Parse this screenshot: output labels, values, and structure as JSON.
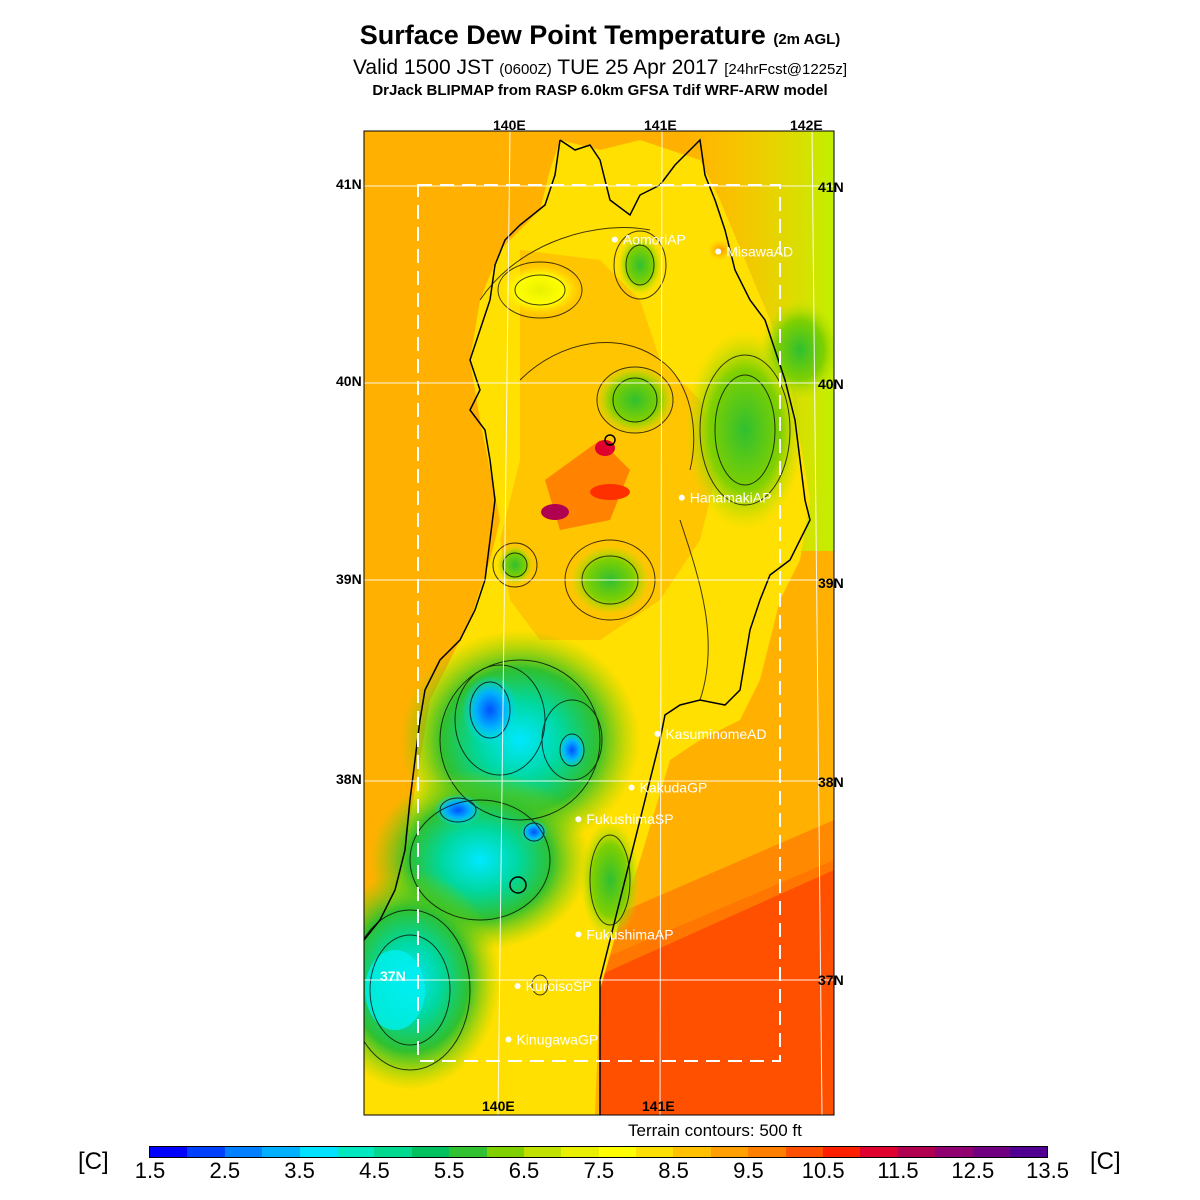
{
  "title": {
    "main": "Surface Dew Point Temperature",
    "suffix": "(2m AGL)",
    "valid_prefix": "Valid 1500 JST",
    "valid_zulu": "(0600Z)",
    "valid_date": "TUE 25 Apr 2017",
    "forecast": "[24hrFcst@1225z]",
    "model": "DrJack BLIPMAP from RASP 6.0km GFSA Tdif WRF-ARW model"
  },
  "axes": {
    "top_lon": [
      "140E",
      "141E",
      "142E"
    ],
    "bottom_lon": [
      "140E",
      "141E"
    ],
    "left_lat": [
      "41N",
      "40N",
      "39N",
      "38N",
      "37N"
    ],
    "right_lat": [
      "41N",
      "40N",
      "39N",
      "38N",
      "37N"
    ]
  },
  "stations": [
    {
      "name": "AomoriAP",
      "lon": 140.69,
      "lat": 40.73
    },
    {
      "name": "MisawaAD",
      "lon": 141.37,
      "lat": 40.67
    },
    {
      "name": "HanamakiAP",
      "lon": 141.13,
      "lat": 39.43
    },
    {
      "name": "KasuminomeAD",
      "lon": 140.97,
      "lat": 38.24
    },
    {
      "name": "KakudaGP",
      "lon": 140.8,
      "lat": 37.97
    },
    {
      "name": "FukushimaSP",
      "lon": 140.45,
      "lat": 37.81
    },
    {
      "name": "FukushimaAP",
      "lon": 140.45,
      "lat": 37.23
    },
    {
      "name": "KuroisoSP",
      "lon": 140.05,
      "lat": 36.97
    },
    {
      "name": "KinugawaGP",
      "lon": 139.99,
      "lat": 36.7
    }
  ],
  "legend": {
    "unit_left": "[C]",
    "unit_right": "[C]",
    "tick_labels": [
      "1.5",
      "2.5",
      "3.5",
      "4.5",
      "5.5",
      "6.5",
      "7.5",
      "8.5",
      "9.5",
      "10.5",
      "11.5",
      "12.5",
      "13.5"
    ],
    "colors": [
      "#0000ff",
      "#0040ff",
      "#0080ff",
      "#00b0ff",
      "#00e0ff",
      "#00e8c0",
      "#00d890",
      "#00c060",
      "#30c030",
      "#80d000",
      "#c0e000",
      "#e8f000",
      "#ffff00",
      "#ffe000",
      "#ffc000",
      "#ffa000",
      "#ff8000",
      "#ff5000",
      "#ff2000",
      "#e00030",
      "#b00050",
      "#900070",
      "#700080",
      "#500090"
    ]
  },
  "terrain_note": "Terrain contours: 500 ft"
}
